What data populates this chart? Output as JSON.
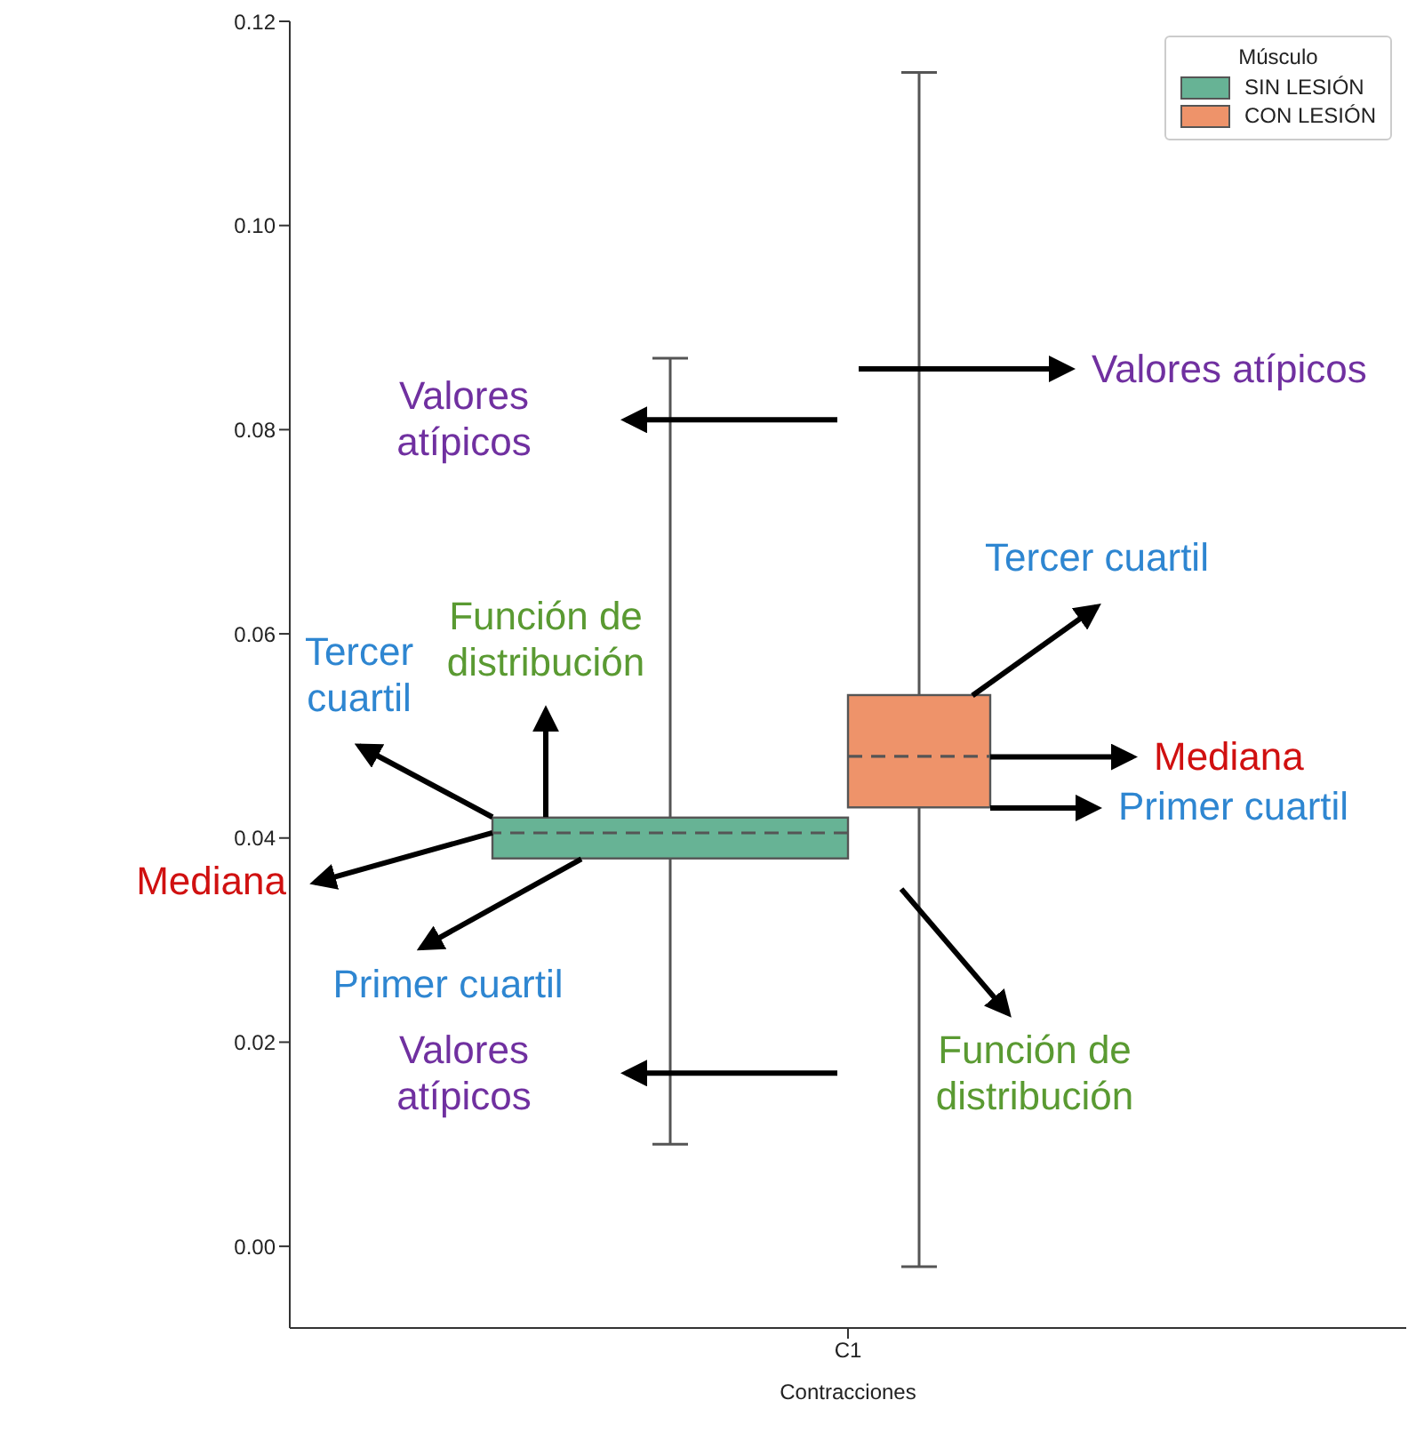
{
  "chart_data": {
    "type": "box",
    "xlabel": "Contracciones",
    "categories": [
      "C1"
    ],
    "legend_title": "Músculo",
    "legend": "top right",
    "ylim": [
      -0.008,
      0.12
    ],
    "yticks": [
      {
        "value": 0,
        "label": "0.00"
      },
      {
        "value": 0.02,
        "label": "0.02"
      },
      {
        "value": 0.04,
        "label": "0.04"
      },
      {
        "value": 0.06,
        "label": "0.06"
      },
      {
        "value": 0.08,
        "label": "0.08"
      },
      {
        "value": 0.1,
        "label": "0.10"
      },
      {
        "value": 0.12,
        "label": "0.12"
      }
    ],
    "series": [
      {
        "name": "SIN LESIÓN",
        "color": "#67b395",
        "boxes": [
          {
            "low": 0.01,
            "q1": 0.038,
            "median": 0.0405,
            "q3": 0.042,
            "high": 0.087
          }
        ]
      },
      {
        "name": "CON LESIÓN",
        "color": "#ee936a",
        "boxes": [
          {
            "low": -0.002,
            "q1": 0.043,
            "median": 0.048,
            "q3": 0.054,
            "high": 0.115
          }
        ]
      }
    ],
    "annotations": [
      "Valores atípicos",
      "Valores atípicos",
      "Tercer cuartil",
      "Función de distribución",
      "Tercer cuartil",
      "Mediana",
      "Mediana",
      "Primer cuartil",
      "Primer cuartil",
      "Función de distribución",
      "Valores atípicos"
    ]
  }
}
